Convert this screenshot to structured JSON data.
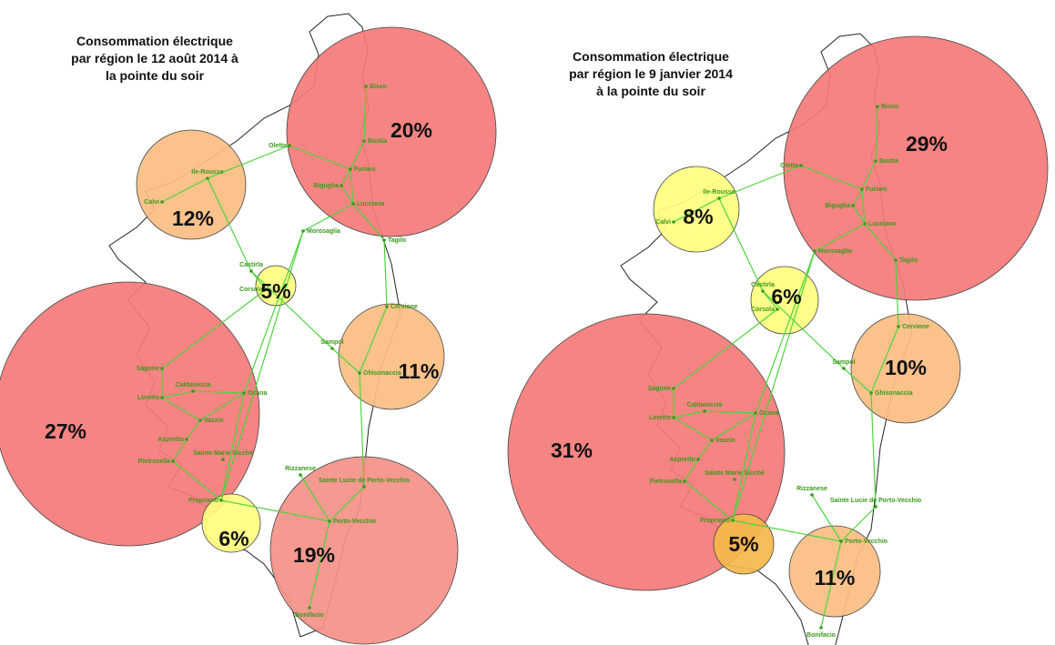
{
  "maps": [
    {
      "title": [
        "Consommation électrique",
        "par région le 12 août 2014 à",
        "la pointe du soir"
      ],
      "bubbles": [
        "20%",
        "12%",
        "5%",
        "11%",
        "27%",
        "6%",
        "19%"
      ],
      "stations": [
        "Bisco",
        "Oletta",
        "Bastia",
        "Furiani",
        "Biguglia",
        "Lucciana",
        "Ile-Rousse",
        "Calvi",
        "Morosaglia",
        "Tagilo",
        "Castirla",
        "Corsola",
        "Cervione",
        "Sampol",
        "Ghisonaccia",
        "Sagone",
        "Caldaniccia",
        "Loretto",
        "Ocana",
        "Vazzio",
        "Aspretto",
        "Pietrosella",
        "Sainte Marie Sicché",
        "Rizzanese",
        "Sainte Lucie de Porto-Vecchio",
        "Propriano",
        "Porto-Vecchio",
        "Bonifacio"
      ]
    },
    {
      "title": [
        "Consommation électrique",
        "par région le 9 janvier 2014",
        "à la pointe du soir"
      ],
      "bubbles": [
        "29%",
        "8%",
        "6%",
        "10%",
        "31%",
        "5%",
        "11%"
      ],
      "stations": [
        "Bisco",
        "Oletta",
        "Bastia",
        "Furiani",
        "Biguglia",
        "Lucciana",
        "Ile-Rousse",
        "Calvi",
        "Morosaglia",
        "Tagilo",
        "Castirla",
        "Corsola",
        "Cervione",
        "Sampol",
        "Ghisonaccia",
        "Sagone",
        "Caldaniccia",
        "Loretto",
        "Ocana",
        "Vazzio",
        "Aspretto",
        "Pietrosella",
        "Sainte Marie Sicché",
        "Rizzanese",
        "Sainte Lucie de Porto-Vecchio",
        "Propriano",
        "Porto-Vecchio",
        "Bonifacio"
      ]
    }
  ]
}
